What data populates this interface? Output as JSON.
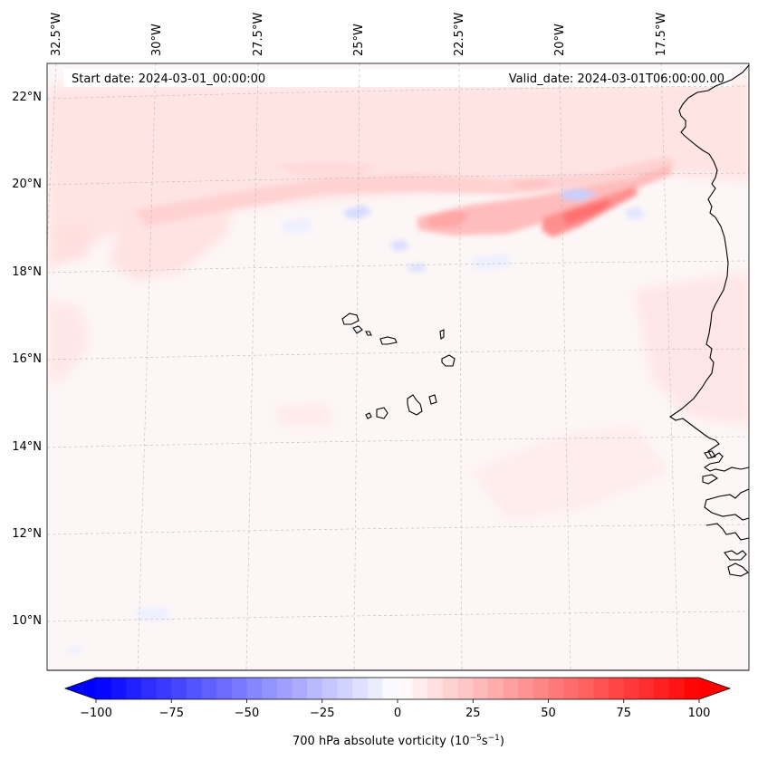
{
  "map": {
    "start_date": "Start date: 2024-03-01_00:00:00",
    "valid_date": "Valid_date: 2024-03-01T06:00:00.00",
    "lon_labels": [
      "32.5°W",
      "30°W",
      "27.5°W",
      "25°W",
      "22.5°W",
      "20°W",
      "17.5°W"
    ],
    "lat_labels": [
      "22°N",
      "20°N",
      "18°N",
      "16°N",
      "14°N",
      "12°N",
      "10°N"
    ],
    "region": "Cape Verde Islands and West African coast",
    "field": "700 hPa absolute vorticity",
    "features": [
      "positive-vorticity-band-near-20N",
      "cape-verde-islands",
      "west-africa-coastline"
    ]
  },
  "colorbar": {
    "label": "700 hPa absolute vorticity (10",
    "label_exp1": "−5",
    "label_mid": "s",
    "label_exp2": "−1",
    "label_end": ")",
    "ticks": [
      "−100",
      "−75",
      "−50",
      "−25",
      "0",
      "25",
      "50",
      "75",
      "100"
    ],
    "min": -100,
    "max": 100,
    "step": 5,
    "negative_color": "#0000ff",
    "positive_color": "#ff0000",
    "center_color": "#ffffff"
  }
}
